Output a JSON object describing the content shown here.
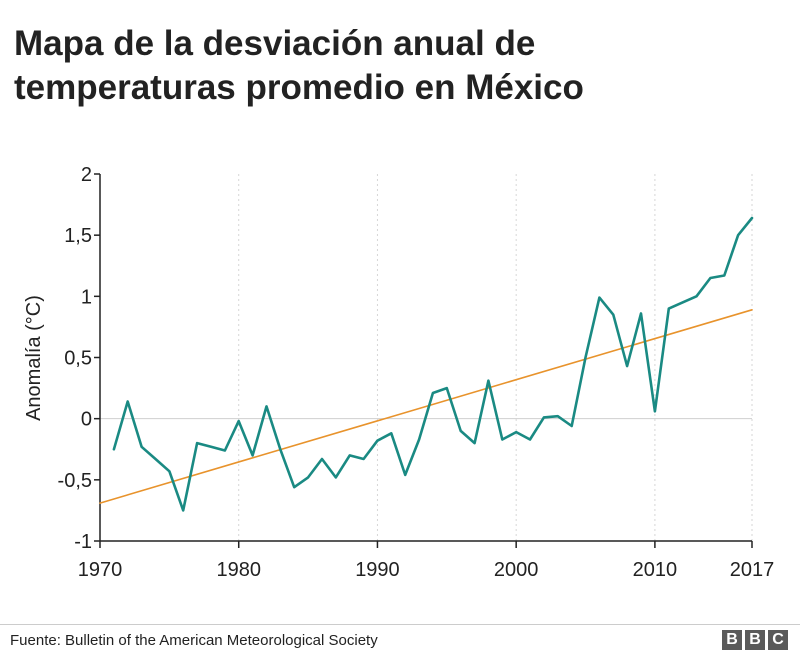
{
  "title_line1": "Mapa de la desviación anual de",
  "title_line2": "temperaturas promedio en México",
  "source": "Fuente: Bulletin of the American Meteorological Society",
  "logo_letters": [
    "B",
    "B",
    "C"
  ],
  "chart_data": {
    "type": "line",
    "title": "Mapa de la desviación anual de temperaturas promedio en México",
    "xlabel": "",
    "ylabel": "Anomalía (°C)",
    "xlim": [
      1970,
      2017
    ],
    "ylim": [
      -1,
      2
    ],
    "x_ticks": [
      1970,
      1980,
      1990,
      2000,
      2010,
      2017
    ],
    "y_ticks": [
      {
        "value": -1,
        "label": "-1"
      },
      {
        "value": -0.5,
        "label": "-0,5"
      },
      {
        "value": 0,
        "label": "0"
      },
      {
        "value": 0.5,
        "label": "0,5"
      },
      {
        "value": 1,
        "label": "1"
      },
      {
        "value": 1.5,
        "label": "1,5"
      },
      {
        "value": 2,
        "label": "2"
      }
    ],
    "series": [
      {
        "color": "#1a8a83",
        "x": [
          1971,
          1972,
          1973,
          1974,
          1975,
          1976,
          1977,
          1978,
          1979,
          1980,
          1981,
          1982,
          1983,
          1984,
          1985,
          1986,
          1987,
          1988,
          1989,
          1990,
          1991,
          1992,
          1993,
          1994,
          1995,
          1996,
          1997,
          1998,
          1999,
          2000,
          2001,
          2002,
          2003,
          2004,
          2005,
          2006,
          2007,
          2008,
          2009,
          2010,
          2011,
          2012,
          2013,
          2014,
          2015,
          2016,
          2017
        ],
        "values": [
          -0.25,
          0.14,
          -0.23,
          -0.33,
          -0.43,
          -0.75,
          -0.2,
          -0.23,
          -0.26,
          -0.02,
          -0.3,
          0.1,
          -0.25,
          -0.56,
          -0.48,
          -0.33,
          -0.48,
          -0.3,
          -0.33,
          -0.18,
          -0.12,
          -0.46,
          -0.17,
          0.21,
          0.25,
          -0.1,
          -0.2,
          0.31,
          -0.17,
          -0.11,
          -0.17,
          0.01,
          0.02,
          -0.06,
          0.5,
          0.99,
          0.85,
          0.43,
          0.86,
          0.06,
          0.9,
          0.95,
          1.0,
          1.15,
          1.17,
          1.5,
          1.64
        ]
      },
      {
        "color": "#e8932c",
        "x": [
          1970,
          2017
        ],
        "values": [
          -0.69,
          0.89
        ]
      }
    ],
    "grid": {
      "vertical": true,
      "zero_line": true
    }
  }
}
